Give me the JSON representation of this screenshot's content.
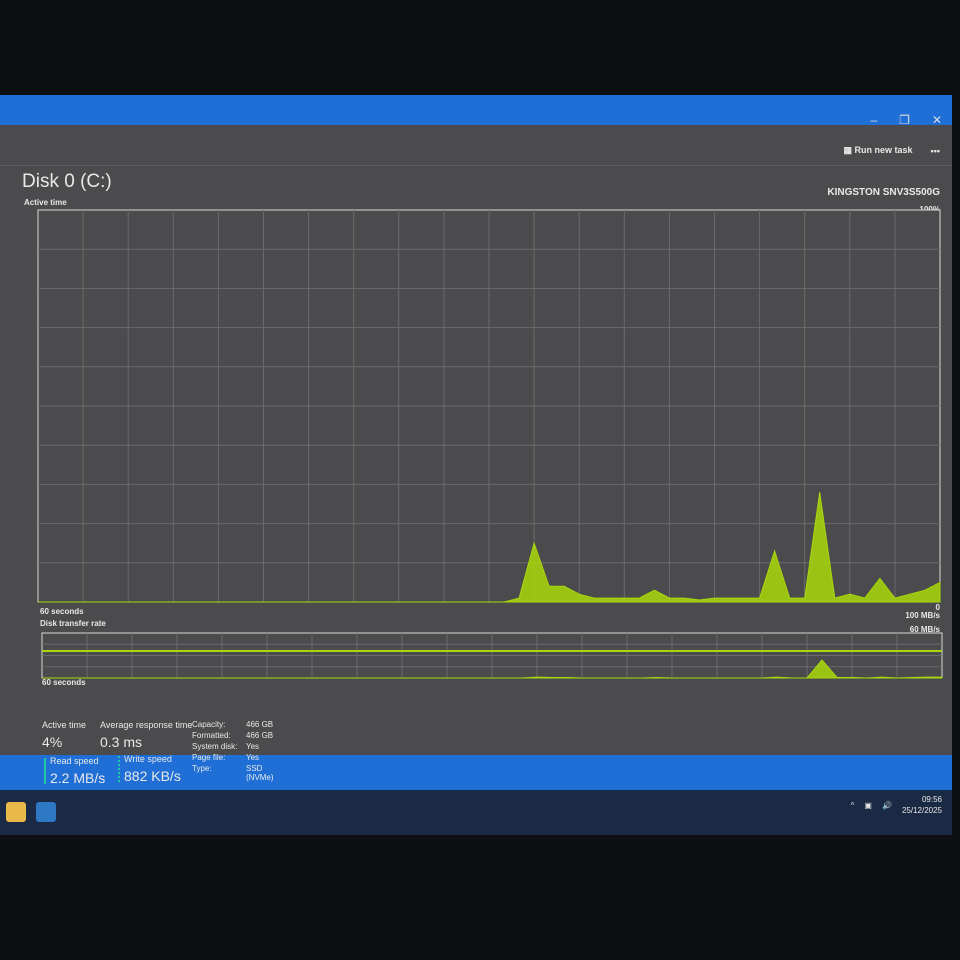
{
  "window": {
    "controls": {
      "minimize": "–",
      "maximize": "❐",
      "close": "✕"
    },
    "run_new_task": "Run new task",
    "more": "•••",
    "disk_title": "Disk 0 (C:)",
    "model": "KINGSTON SNV3S500G"
  },
  "colors": {
    "accent": "#a8d80a",
    "read": "#1fc9a6",
    "window": "#4b4b4d",
    "taskbar": "#1b2a44"
  },
  "chart_data": [
    {
      "type": "area",
      "title": "Active time",
      "x_label_left": "60 seconds",
      "y_max_label": "100%",
      "y_min_label": "0",
      "ylim": [
        0,
        100
      ],
      "xlim": [
        60,
        0
      ],
      "grid": true,
      "values": [
        0,
        0,
        0,
        0,
        0,
        0,
        0,
        0,
        0,
        0,
        0,
        0,
        0,
        0,
        0,
        0,
        0,
        0,
        0,
        0,
        0,
        0,
        0,
        0,
        0,
        0,
        0,
        0,
        0,
        0,
        0,
        0,
        1,
        15,
        4,
        4,
        2,
        1,
        1,
        1,
        1,
        3,
        1,
        1,
        0.5,
        1,
        1,
        1,
        1,
        13,
        1,
        1,
        28,
        1,
        2,
        1,
        6,
        1,
        2,
        3,
        5
      ]
    },
    {
      "type": "area",
      "title": "Disk transfer rate",
      "x_label_left": "60 seconds",
      "y_max_label": "100 MB/s",
      "marker_label": "60 MB/s",
      "y_min_label": "0",
      "ylim": [
        0,
        100
      ],
      "marker": 60,
      "grid": true,
      "values": [
        0,
        0,
        0,
        0,
        0,
        0,
        0,
        0,
        0,
        0,
        0,
        0,
        0,
        0,
        0,
        0,
        0,
        0,
        0,
        0,
        0,
        0,
        0,
        0,
        0,
        0,
        0,
        0,
        0,
        0,
        0,
        0,
        0,
        2,
        1,
        1,
        0,
        0,
        0,
        0,
        0,
        1,
        0,
        0,
        0,
        0,
        0,
        0,
        0,
        2,
        0,
        0,
        40,
        1,
        1,
        0,
        2,
        0,
        1,
        2,
        2
      ]
    }
  ],
  "stats": {
    "active_time": {
      "label": "Active time",
      "value": "4%"
    },
    "avg_response": {
      "label": "Average response time",
      "value": "0.3 ms"
    },
    "read_speed": {
      "label": "Read speed",
      "value": "2.2 MB/s"
    },
    "write_speed": {
      "label": "Write speed",
      "value": "882 KB/s"
    },
    "properties": [
      {
        "k": "Capacity:",
        "v": "466 GB"
      },
      {
        "k": "Formatted:",
        "v": "466 GB"
      },
      {
        "k": "System disk:",
        "v": "Yes"
      },
      {
        "k": "Page file:",
        "v": "Yes"
      },
      {
        "k": "Type:",
        "v": "SSD (NVMe)"
      }
    ]
  },
  "taskbar": {
    "time": "09:56",
    "date": "25/12/2025",
    "tray_chevron": "^",
    "volume": "🔊"
  }
}
